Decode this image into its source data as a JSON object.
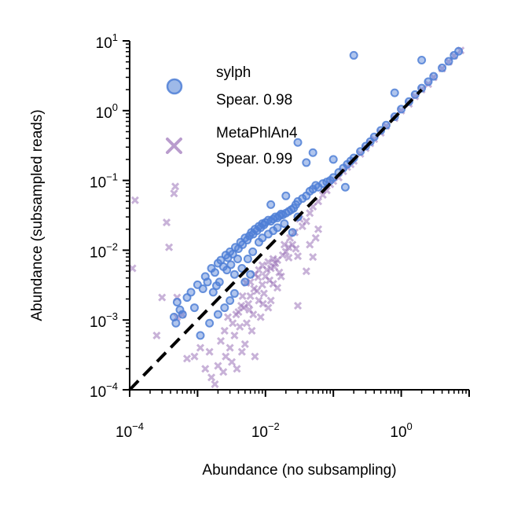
{
  "chart_data": {
    "type": "scatter",
    "title": "",
    "xlabel": "Abundance (no subsampling)",
    "ylabel": "Abundance (subsampled reads)",
    "xscale": "log",
    "yscale": "log",
    "xlim": [
      0.0001,
      10
    ],
    "ylim": [
      0.0001,
      10
    ],
    "x_ticks": [
      {
        "value": 0.0001,
        "base": "10",
        "exp": "−4"
      },
      {
        "value": 0.01,
        "base": "10",
        "exp": "−2"
      },
      {
        "value": 1,
        "base": "10",
        "exp": "0"
      }
    ],
    "y_ticks": [
      {
        "value": 0.0001,
        "base": "10",
        "exp": "−4"
      },
      {
        "value": 0.001,
        "base": "10",
        "exp": "−3"
      },
      {
        "value": 0.01,
        "base": "10",
        "exp": "−2"
      },
      {
        "value": 0.1,
        "base": "10",
        "exp": "−1"
      },
      {
        "value": 1,
        "base": "10",
        "exp": "0"
      },
      {
        "value": 10,
        "base": "10",
        "exp": "1"
      }
    ],
    "reference_line": {
      "style": "dashed",
      "color": "#000000",
      "x": [
        0.0001,
        2
      ],
      "y": [
        0.0001,
        2
      ]
    },
    "grid": false,
    "legend_position": "upper-left",
    "series": [
      {
        "name": "MetaPhlAn4",
        "stat": "Spear. 0.99",
        "marker": "x",
        "color": "#9b72b8",
        "points": [
          [
            0.00011,
            0.0055
          ],
          [
            0.00012,
            0.052
          ],
          [
            0.00035,
            0.025
          ],
          [
            0.00038,
            0.011
          ],
          [
            0.00045,
            0.065
          ],
          [
            0.00047,
            0.082
          ],
          [
            0.0005,
            0.0011
          ],
          [
            0.0006,
            0.0012
          ],
          [
            0.0007,
            0.00028
          ],
          [
            0.0009,
            0.0003
          ],
          [
            0.0011,
            0.0004
          ],
          [
            0.0013,
            0.0002
          ],
          [
            0.0015,
            0.00035
          ],
          [
            0.0016,
            0.00015
          ],
          [
            0.0018,
            0.00012
          ],
          [
            0.002,
            0.00022
          ],
          [
            0.0022,
            0.0005
          ],
          [
            0.0024,
            0.00018
          ],
          [
            0.0026,
            0.0003
          ],
          [
            0.0028,
            0.0011
          ],
          [
            0.003,
            0.0004
          ],
          [
            0.0032,
            0.00025
          ],
          [
            0.0035,
            0.0006
          ],
          [
            0.0038,
            0.0002
          ],
          [
            0.004,
            0.0013
          ],
          [
            0.0042,
            0.0008
          ],
          [
            0.0045,
            0.00035
          ],
          [
            0.0048,
            0.0015
          ],
          [
            0.005,
            0.00045
          ],
          [
            0.0053,
            0.0009
          ],
          [
            0.0056,
            0.0017
          ],
          [
            0.006,
            0.0022
          ],
          [
            0.0063,
            0.0007
          ],
          [
            0.0066,
            0.0012
          ],
          [
            0.007,
            0.0003
          ],
          [
            0.0075,
            0.0026
          ],
          [
            0.008,
            0.0019
          ],
          [
            0.0085,
            0.0011
          ],
          [
            0.009,
            0.0032
          ],
          [
            0.0095,
            0.0024
          ],
          [
            0.01,
            0.0042
          ],
          [
            0.011,
            0.0015
          ],
          [
            0.012,
            0.0055
          ],
          [
            0.013,
            0.0033
          ],
          [
            0.014,
            0.0065
          ],
          [
            0.015,
            0.0072
          ],
          [
            0.016,
            0.0048
          ],
          [
            0.018,
            0.0085
          ],
          [
            0.02,
            0.0095
          ],
          [
            0.022,
            0.0078
          ],
          [
            0.025,
            0.012
          ],
          [
            0.028,
            0.0105
          ],
          [
            0.03,
            0.0082
          ],
          [
            0.035,
            0.022
          ],
          [
            0.04,
            0.026
          ],
          [
            0.045,
            0.034
          ],
          [
            0.05,
            0.042
          ],
          [
            0.06,
            0.05
          ],
          [
            0.07,
            0.062
          ],
          [
            0.08,
            0.072
          ],
          [
            0.09,
            0.088
          ],
          [
            0.1,
            0.098
          ],
          [
            0.12,
            0.11
          ],
          [
            0.14,
            0.135
          ],
          [
            0.16,
            0.155
          ],
          [
            0.18,
            0.17
          ],
          [
            0.2,
            0.19
          ],
          [
            0.25,
            0.24
          ],
          [
            0.3,
            0.29
          ],
          [
            0.35,
            0.34
          ],
          [
            0.4,
            0.39
          ],
          [
            0.5,
            0.48
          ],
          [
            0.6,
            0.6
          ],
          [
            0.8,
            0.78
          ],
          [
            1.0,
            1.0
          ],
          [
            1.3,
            1.25
          ],
          [
            1.6,
            1.6
          ],
          [
            2.0,
            2.0
          ],
          [
            2.5,
            2.4
          ],
          [
            3.0,
            3.0
          ],
          [
            4.0,
            4.0
          ],
          [
            5.0,
            5.0
          ],
          [
            6.0,
            6.1
          ],
          [
            7.5,
            7.3
          ],
          [
            0.0003,
            0.0021
          ],
          [
            0.00025,
            0.0006
          ],
          [
            0.0005,
            0.0021
          ],
          [
            0.012,
            0.0019
          ],
          [
            0.015,
            0.0029
          ],
          [
            0.017,
            0.0042
          ],
          [
            0.006,
            0.0035
          ],
          [
            0.007,
            0.0045
          ],
          [
            0.008,
            0.0052
          ],
          [
            0.009,
            0.0061
          ],
          [
            0.011,
            0.0068
          ],
          [
            0.013,
            0.0075
          ],
          [
            0.019,
            0.012
          ],
          [
            0.023,
            0.015
          ],
          [
            0.027,
            0.018
          ],
          [
            0.032,
            0.028
          ],
          [
            0.022,
            0.011
          ],
          [
            0.0105,
            0.0052
          ],
          [
            0.0068,
            0.0028
          ],
          [
            0.0044,
            0.0016
          ],
          [
            0.0046,
            0.0022
          ],
          [
            0.0058,
            0.0014
          ],
          [
            0.0033,
            0.0009
          ],
          [
            0.0025,
            0.0007
          ],
          [
            0.0037,
            0.0012
          ],
          [
            0.0052,
            0.0034
          ],
          [
            0.0078,
            0.0041
          ],
          [
            0.0092,
            0.0017
          ],
          [
            0.0115,
            0.0037
          ],
          [
            0.0135,
            0.0058
          ],
          [
            0.04,
            0.005
          ],
          [
            0.05,
            0.008
          ],
          [
            0.03,
            0.0016
          ],
          [
            0.045,
            0.012
          ],
          [
            0.06,
            0.02
          ],
          [
            0.055,
            0.015
          ]
        ]
      },
      {
        "name": "sylph",
        "stat": "Spear. 0.98",
        "marker": "o",
        "color": "#4f7fd6",
        "points": [
          [
            0.00045,
            0.0011
          ],
          [
            0.00048,
            0.0009
          ],
          [
            0.0005,
            0.0018
          ],
          [
            0.00055,
            0.0014
          ],
          [
            0.0006,
            0.0012
          ],
          [
            0.0007,
            0.0021
          ],
          [
            0.0008,
            0.0025
          ],
          [
            0.0009,
            0.0015
          ],
          [
            0.001,
            0.0032
          ],
          [
            0.0012,
            0.0028
          ],
          [
            0.0013,
            0.0042
          ],
          [
            0.0014,
            0.0035
          ],
          [
            0.0016,
            0.0055
          ],
          [
            0.0018,
            0.0048
          ],
          [
            0.002,
            0.0065
          ],
          [
            0.0022,
            0.0072
          ],
          [
            0.0024,
            0.0058
          ],
          [
            0.0026,
            0.0085
          ],
          [
            0.0028,
            0.0078
          ],
          [
            0.003,
            0.0095
          ],
          [
            0.0033,
            0.0088
          ],
          [
            0.0036,
            0.011
          ],
          [
            0.004,
            0.0105
          ],
          [
            0.0043,
            0.013
          ],
          [
            0.0046,
            0.012
          ],
          [
            0.005,
            0.015
          ],
          [
            0.0054,
            0.014
          ],
          [
            0.0058,
            0.016
          ],
          [
            0.0062,
            0.018
          ],
          [
            0.0066,
            0.017
          ],
          [
            0.007,
            0.02
          ],
          [
            0.0075,
            0.019
          ],
          [
            0.008,
            0.022
          ],
          [
            0.0085,
            0.021
          ],
          [
            0.009,
            0.024
          ],
          [
            0.0095,
            0.023
          ],
          [
            0.01,
            0.025
          ],
          [
            0.011,
            0.027
          ],
          [
            0.012,
            0.026
          ],
          [
            0.013,
            0.028
          ],
          [
            0.014,
            0.03
          ],
          [
            0.015,
            0.029
          ],
          [
            0.016,
            0.031
          ],
          [
            0.017,
            0.033
          ],
          [
            0.018,
            0.032
          ],
          [
            0.02,
            0.034
          ],
          [
            0.022,
            0.036
          ],
          [
            0.024,
            0.038
          ],
          [
            0.026,
            0.04
          ],
          [
            0.028,
            0.045
          ],
          [
            0.03,
            0.05
          ],
          [
            0.035,
            0.055
          ],
          [
            0.04,
            0.06
          ],
          [
            0.045,
            0.07
          ],
          [
            0.05,
            0.075
          ],
          [
            0.055,
            0.085
          ],
          [
            0.06,
            0.08
          ],
          [
            0.07,
            0.09
          ],
          [
            0.08,
            0.095
          ],
          [
            0.09,
            0.1
          ],
          [
            0.1,
            0.11
          ],
          [
            0.12,
            0.13
          ],
          [
            0.14,
            0.15
          ],
          [
            0.16,
            0.17
          ],
          [
            0.18,
            0.19
          ],
          [
            0.2,
            0.21
          ],
          [
            0.25,
            0.26
          ],
          [
            0.3,
            0.31
          ],
          [
            0.35,
            0.36
          ],
          [
            0.4,
            0.42
          ],
          [
            0.5,
            0.52
          ],
          [
            0.6,
            0.62
          ],
          [
            0.8,
            0.82
          ],
          [
            1.0,
            1.05
          ],
          [
            1.3,
            1.35
          ],
          [
            1.6,
            1.7
          ],
          [
            2.0,
            2.1
          ],
          [
            2.5,
            2.6
          ],
          [
            3.0,
            3.1
          ],
          [
            4.0,
            4.1
          ],
          [
            5.0,
            5.1
          ],
          [
            6.0,
            6.2
          ],
          [
            7.0,
            7.1
          ],
          [
            0.002,
            0.0012
          ],
          [
            0.0025,
            0.0015
          ],
          [
            0.003,
            0.0019
          ],
          [
            0.0035,
            0.0024
          ],
          [
            0.005,
            0.0035
          ],
          [
            0.006,
            0.0045
          ],
          [
            0.0011,
            0.0006
          ],
          [
            0.0015,
            0.0009
          ],
          [
            0.0045,
            0.0055
          ],
          [
            0.0055,
            0.0075
          ],
          [
            0.0065,
            0.0095
          ],
          [
            0.0035,
            0.0045
          ],
          [
            0.008,
            0.013
          ],
          [
            0.009,
            0.015
          ],
          [
            0.011,
            0.017
          ],
          [
            0.013,
            0.019
          ],
          [
            0.015,
            0.021
          ],
          [
            0.019,
            0.024
          ],
          [
            0.0021,
            0.0035
          ],
          [
            0.0017,
            0.0025
          ],
          [
            0.0019,
            0.0031
          ],
          [
            0.0027,
            0.0052
          ],
          [
            0.0031,
            0.0062
          ],
          [
            0.0039,
            0.0075
          ],
          [
            0.03,
            0.35
          ],
          [
            0.2,
            6.2
          ],
          [
            0.8,
            1.8
          ],
          [
            2.0,
            5.3
          ],
          [
            0.05,
            0.25
          ],
          [
            0.1,
            0.2
          ],
          [
            0.04,
            0.18
          ],
          [
            0.15,
            0.08
          ],
          [
            0.012,
            0.045
          ],
          [
            0.02,
            0.06
          ],
          [
            0.025,
            0.018
          ],
          [
            0.03,
            0.03
          ]
        ]
      }
    ]
  }
}
